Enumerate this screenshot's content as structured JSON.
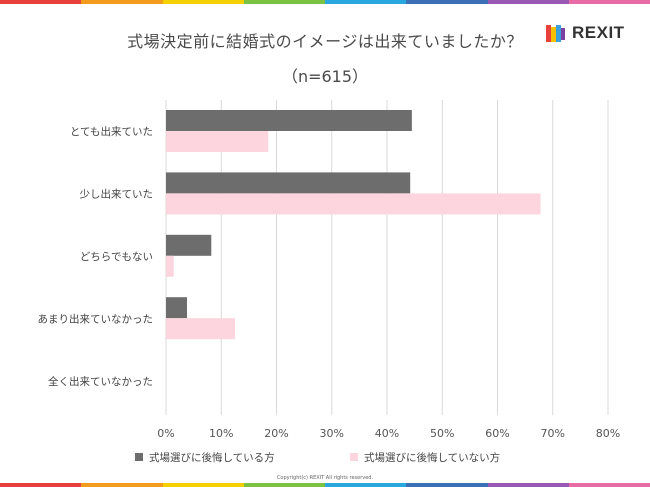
{
  "header": {
    "title": "式場決定前に結婚式のイメージは出来ていましたか？",
    "subtitle": "（n=615）"
  },
  "logo": {
    "text": "REXIT",
    "colors": [
      "#e8413c",
      "#f4c000",
      "#3aa0dc",
      "#7b3fa0"
    ]
  },
  "footer": {
    "copyright": "Copyright(c) REXIT All rights reserved."
  },
  "decor": {
    "stripe_colors": [
      "#e8413c",
      "#f29b1d",
      "#f4d000",
      "#7cc242",
      "#29a8df",
      "#3b6fb6",
      "#9b59b6",
      "#e86aa6"
    ]
  },
  "chart_data": {
    "type": "bar",
    "orientation": "horizontal",
    "categories": [
      "とても出来ていた",
      "少し出来ていた",
      "どちらでもない",
      "あまり出来ていなかった",
      "全く出来ていなかった"
    ],
    "series": [
      {
        "name": "式場選びに後悔している方",
        "color": "#6d6d6d",
        "values": [
          44.5,
          44.2,
          8.2,
          3.8,
          0
        ]
      },
      {
        "name": "式場選びに後悔していない方",
        "color": "#fcd5df",
        "values": [
          18.5,
          67.8,
          1.4,
          12.5,
          0
        ]
      }
    ],
    "xlim": [
      0,
      80
    ],
    "xticks": [
      "0%",
      "10%",
      "20%",
      "30%",
      "40%",
      "50%",
      "60%",
      "70%",
      "80%"
    ],
    "grid": true,
    "legend_position": "bottom"
  }
}
